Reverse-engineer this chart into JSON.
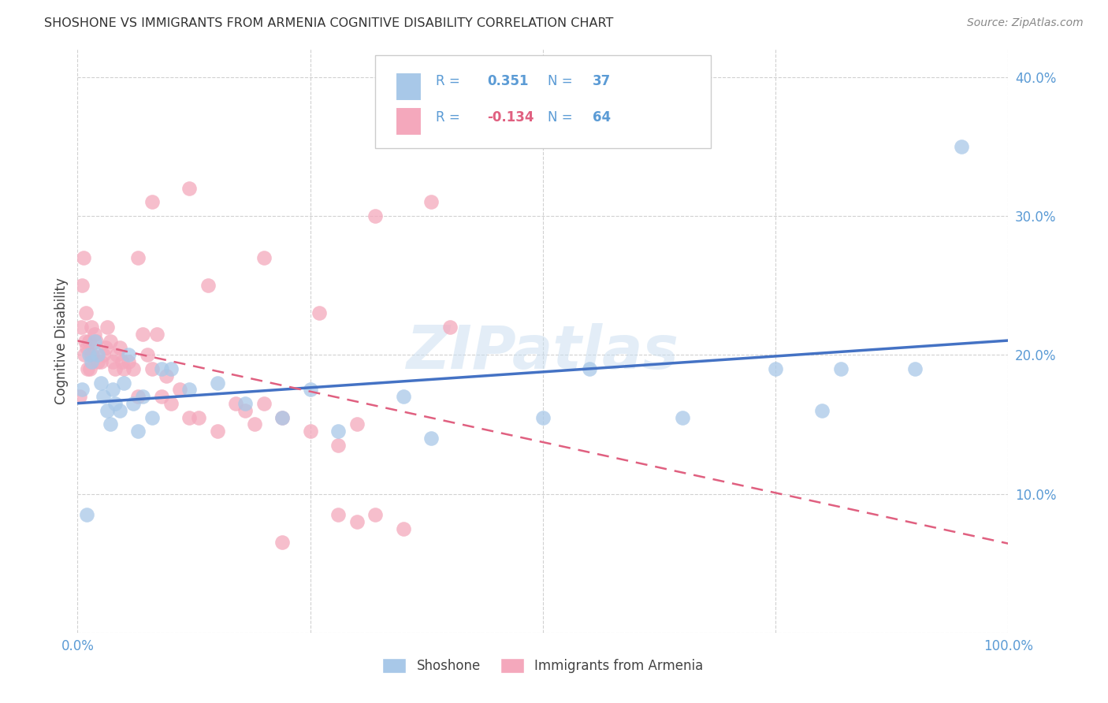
{
  "title": "SHOSHONE VS IMMIGRANTS FROM ARMENIA COGNITIVE DISABILITY CORRELATION CHART",
  "source": "Source: ZipAtlas.com",
  "tick_color": "#5b9bd5",
  "ylabel": "Cognitive Disability",
  "xlim": [
    0,
    1.0
  ],
  "ylim": [
    0,
    0.42
  ],
  "xticks": [
    0.0,
    0.25,
    0.5,
    0.75,
    1.0
  ],
  "xticklabels": [
    "0.0%",
    "",
    "",
    "",
    "100.0%"
  ],
  "yticks": [
    0.0,
    0.1,
    0.2,
    0.3,
    0.4
  ],
  "yticklabels": [
    "",
    "10.0%",
    "20.0%",
    "30.0%",
    "40.0%"
  ],
  "watermark": "ZIPatlas",
  "blue_color": "#a8c8e8",
  "pink_color": "#f4a8bc",
  "blue_line_color": "#4472c4",
  "pink_line_color": "#e06080",
  "shoshone_x": [
    0.005,
    0.01,
    0.012,
    0.015,
    0.018,
    0.022,
    0.025,
    0.028,
    0.032,
    0.035,
    0.038,
    0.04,
    0.045,
    0.05,
    0.055,
    0.06,
    0.065,
    0.07,
    0.08,
    0.09,
    0.1,
    0.12,
    0.15,
    0.18,
    0.22,
    0.25,
    0.28,
    0.35,
    0.38,
    0.5,
    0.55,
    0.65,
    0.75,
    0.8,
    0.9,
    0.95,
    0.82
  ],
  "shoshone_y": [
    0.175,
    0.085,
    0.2,
    0.195,
    0.21,
    0.2,
    0.18,
    0.17,
    0.16,
    0.15,
    0.175,
    0.165,
    0.16,
    0.18,
    0.2,
    0.165,
    0.145,
    0.17,
    0.155,
    0.19,
    0.19,
    0.175,
    0.18,
    0.165,
    0.155,
    0.175,
    0.145,
    0.17,
    0.14,
    0.155,
    0.19,
    0.155,
    0.19,
    0.16,
    0.19,
    0.35,
    0.19
  ],
  "armenia_x": [
    0.002,
    0.004,
    0.005,
    0.006,
    0.007,
    0.008,
    0.009,
    0.01,
    0.011,
    0.012,
    0.013,
    0.014,
    0.015,
    0.016,
    0.018,
    0.02,
    0.022,
    0.025,
    0.028,
    0.03,
    0.032,
    0.035,
    0.038,
    0.04,
    0.042,
    0.045,
    0.048,
    0.05,
    0.055,
    0.06,
    0.065,
    0.07,
    0.075,
    0.08,
    0.085,
    0.09,
    0.095,
    0.1,
    0.11,
    0.12,
    0.13,
    0.15,
    0.17,
    0.18,
    0.19,
    0.2,
    0.22,
    0.25,
    0.28,
    0.3,
    0.32,
    0.35,
    0.08,
    0.32,
    0.38,
    0.4,
    0.28,
    0.22,
    0.12,
    0.065,
    0.14,
    0.26,
    0.2,
    0.3
  ],
  "armenia_y": [
    0.17,
    0.22,
    0.25,
    0.27,
    0.2,
    0.21,
    0.23,
    0.205,
    0.19,
    0.21,
    0.19,
    0.2,
    0.22,
    0.2,
    0.215,
    0.21,
    0.195,
    0.195,
    0.2,
    0.205,
    0.22,
    0.21,
    0.195,
    0.19,
    0.2,
    0.205,
    0.195,
    0.19,
    0.195,
    0.19,
    0.17,
    0.215,
    0.2,
    0.19,
    0.215,
    0.17,
    0.185,
    0.165,
    0.175,
    0.155,
    0.155,
    0.145,
    0.165,
    0.16,
    0.15,
    0.165,
    0.155,
    0.145,
    0.135,
    0.08,
    0.085,
    0.075,
    0.31,
    0.3,
    0.31,
    0.22,
    0.085,
    0.065,
    0.32,
    0.27,
    0.25,
    0.23,
    0.27,
    0.15
  ]
}
